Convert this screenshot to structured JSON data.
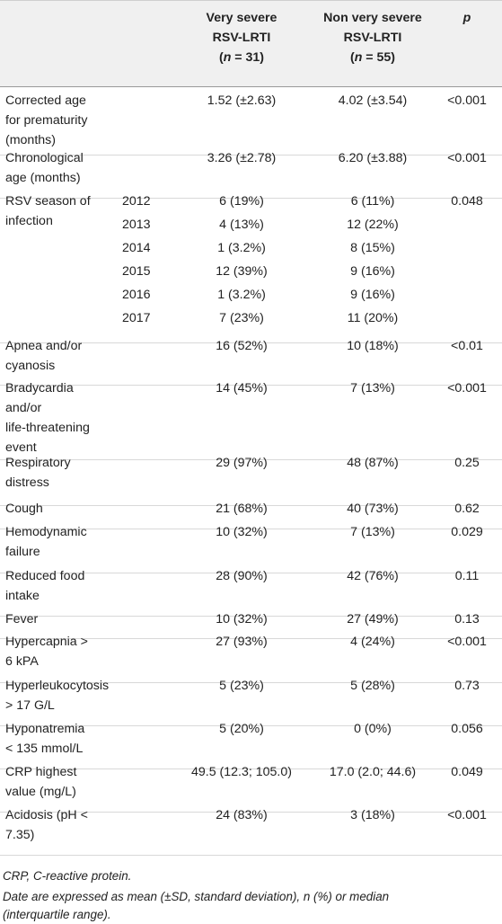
{
  "header": {
    "col_vs_line1": "Very severe",
    "col_vs_line2": "RSV-LRTI",
    "col_vs_n_open": "(",
    "col_vs_n_var": "n",
    "col_vs_n_rest": " = 31)",
    "col_nvs_line1": "Non very severe",
    "col_nvs_line2": "RSV-LRTI",
    "col_nvs_n_open": "(",
    "col_nvs_n_var": "n",
    "col_nvs_n_rest": " = 55)",
    "col_p": "p"
  },
  "rows": [
    {
      "label": [
        "Corrected age",
        "for prematurity",
        "(months)"
      ],
      "vs": "1.52 (±2.63)",
      "nvs": "4.02 (±3.54)",
      "p": "<0.001"
    },
    {
      "label": [
        "Chronological",
        "age (months)"
      ],
      "vs": "3.26 (±2.78)",
      "nvs": "6.20 (±3.88)",
      "p": "<0.001"
    },
    {
      "label": [
        "RSV season of",
        "infection"
      ],
      "p": "0.048",
      "years": [
        {
          "year": "2012",
          "vs": "6 (19%)",
          "nvs": "6 (11%)"
        },
        {
          "year": "2013",
          "vs": "4 (13%)",
          "nvs": "12 (22%)"
        },
        {
          "year": "2014",
          "vs": "1 (3.2%)",
          "nvs": "8 (15%)"
        },
        {
          "year": "2015",
          "vs": "12 (39%)",
          "nvs": "9 (16%)"
        },
        {
          "year": "2016",
          "vs": "1 (3.2%)",
          "nvs": "9 (16%)"
        },
        {
          "year": "2017",
          "vs": "7 (23%)",
          "nvs": "11 (20%)"
        }
      ]
    },
    {
      "label": [
        "Apnea and/or",
        "cyanosis"
      ],
      "vs": "16 (52%)",
      "nvs": "10 (18%)",
      "p": "<0.01"
    },
    {
      "label": [
        "Bradycardia",
        "and/or",
        "life-threatening",
        "event"
      ],
      "vs": "14 (45%)",
      "nvs": "7 (13%)",
      "p": "<0.001"
    },
    {
      "label": [
        "Respiratory",
        "distress"
      ],
      "vs": "29 (97%)",
      "nvs": "48 (87%)",
      "p": "0.25"
    },
    {
      "label": [
        "Cough"
      ],
      "vs": "21 (68%)",
      "nvs": "40 (73%)",
      "p": "0.62"
    },
    {
      "label": [
        "Hemodynamic",
        "failure"
      ],
      "vs": "10 (32%)",
      "nvs": "7 (13%)",
      "p": "0.029"
    },
    {
      "label": [
        "Reduced food",
        "intake"
      ],
      "vs": "28 (90%)",
      "nvs": "42 (76%)",
      "p": "0.11"
    },
    {
      "label": [
        "Fever"
      ],
      "vs": "10 (32%)",
      "nvs": "27 (49%)",
      "p": "0.13"
    },
    {
      "label": [
        "Hypercapnia >",
        "6 kPA"
      ],
      "vs": "27 (93%)",
      "nvs": "4 (24%)",
      "p": "<0.001"
    },
    {
      "label": [
        "Hyperleukocytosis",
        "> 17 G/L"
      ],
      "vs": "5 (23%)",
      "nvs": "5 (28%)",
      "p": "0.73"
    },
    {
      "label": [
        "Hyponatremia",
        "< 135 mmol/L"
      ],
      "vs": "5 (20%)",
      "nvs": "0 (0%)",
      "p": "0.056"
    },
    {
      "label": [
        "CRP highest",
        "value (mg/L)"
      ],
      "vs": "49.5 (12.3; 105.0)",
      "nvs": "17.0 (2.0; 44.6)",
      "p": "0.049"
    },
    {
      "label": [
        "Acidosis (pH <",
        "7.35)"
      ],
      "vs": "24 (83%)",
      "nvs": "3 (18%)",
      "p": "<0.001"
    }
  ],
  "footnotes": [
    "CRP, C-reactive protein.",
    "Date are expressed as mean (±SD, standard deviation), n (%) or median",
    "(interquartile range)."
  ]
}
